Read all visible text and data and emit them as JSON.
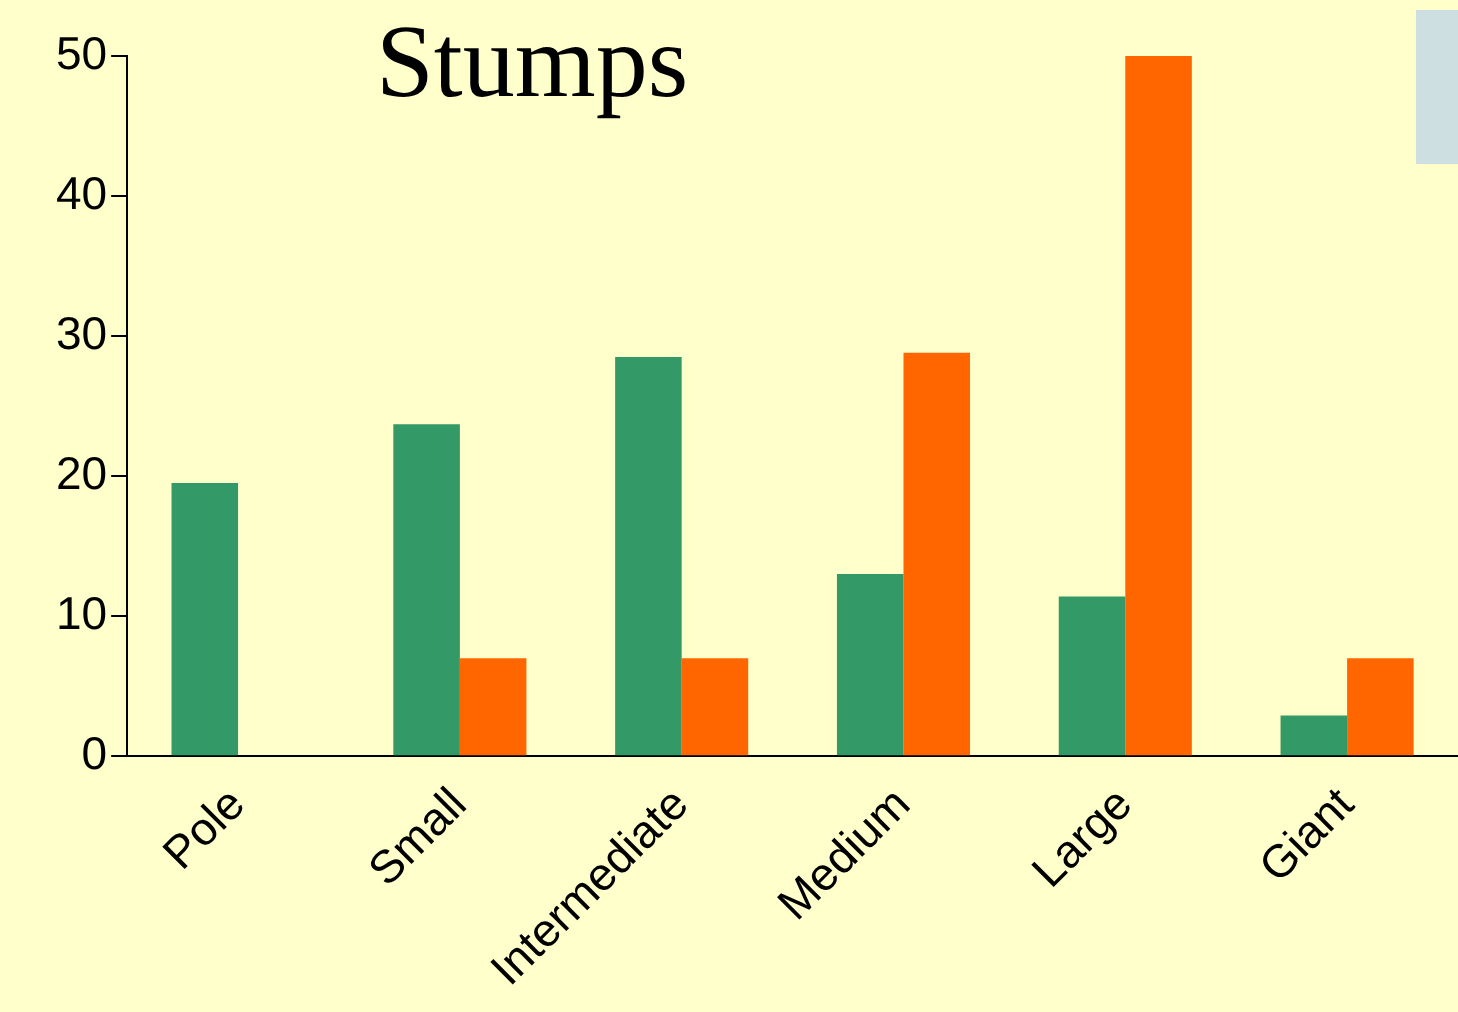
{
  "chart_data": {
    "type": "bar",
    "title": "Stumps",
    "categories": [
      "Pole",
      "Small",
      "Intermediate",
      "Medium",
      "Large",
      "Giant"
    ],
    "series": [
      {
        "color": "#339966",
        "values": [
          19.5,
          23.7,
          28.5,
          13,
          11.4,
          2.9
        ]
      },
      {
        "color": "#ff6600",
        "values": [
          null,
          7,
          7,
          28.8,
          50,
          7
        ]
      }
    ],
    "ylim": [
      0,
      50
    ],
    "yticks": [
      0,
      10,
      20,
      30,
      40,
      50
    ],
    "grid": false,
    "legend": false
  }
}
